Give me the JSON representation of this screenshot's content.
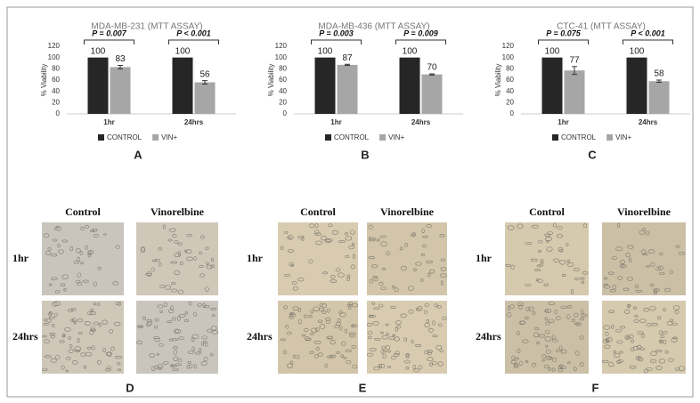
{
  "chart_data": [
    {
      "type": "bar",
      "title": "MDA-MB-231 (MTT ASSAY)",
      "ylabel": "% Viability",
      "panel_label": "A",
      "categories": [
        "1hr",
        "24hrs"
      ],
      "series": [
        {
          "name": "CONTROL",
          "color": "#262626",
          "values": [
            100,
            100
          ]
        },
        {
          "name": "VIN+",
          "color": "#a6a6a6",
          "values": [
            83,
            56
          ],
          "errors": [
            3,
            3
          ]
        }
      ],
      "p_values": [
        "P = 0.007",
        "P < 0.001"
      ],
      "ylim": [
        0,
        120
      ],
      "yticks": [
        0,
        20,
        40,
        60,
        80,
        100,
        120
      ],
      "grid": false
    },
    {
      "type": "bar",
      "title": "MDA-MB-436 (MTT ASSAY)",
      "ylabel": "% Viability",
      "panel_label": "B",
      "categories": [
        "1hr",
        "24hrs"
      ],
      "series": [
        {
          "name": "CONTROL",
          "color": "#262626",
          "values": [
            100,
            100
          ]
        },
        {
          "name": "VIN+",
          "color": "#a6a6a6",
          "values": [
            87,
            70
          ],
          "errors": [
            1,
            1
          ]
        }
      ],
      "p_values": [
        "P = 0.003",
        "P = 0.009"
      ],
      "ylim": [
        0,
        120
      ],
      "yticks": [
        0,
        20,
        40,
        60,
        80,
        100,
        120
      ],
      "grid": false
    },
    {
      "type": "bar",
      "title": "CTC-41 (MTT ASSAY)",
      "ylabel": "% Viability",
      "panel_label": "C",
      "categories": [
        "1hr",
        "24hrs"
      ],
      "series": [
        {
          "name": "CONTROL",
          "color": "#262626",
          "values": [
            100,
            100
          ]
        },
        {
          "name": "VIN+",
          "color": "#a6a6a6",
          "values": [
            77,
            58
          ],
          "errors": [
            7,
            2
          ]
        }
      ],
      "p_values": [
        "P = 0.075",
        "P < 0.001"
      ],
      "ylim": [
        0,
        120
      ],
      "yticks": [
        0,
        20,
        40,
        60,
        80,
        100,
        120
      ],
      "grid": false
    }
  ],
  "micrographs": [
    {
      "label": "D",
      "columns": [
        "Control",
        "Vinorelbine"
      ],
      "rows": [
        "1hr",
        "24hrs"
      ]
    },
    {
      "label": "E",
      "columns": [
        "Control",
        "Vinorelbine"
      ],
      "rows": [
        "1hr",
        "24hrs"
      ]
    },
    {
      "label": "F",
      "columns": [
        "Control",
        "Vinorelbine"
      ],
      "rows": [
        "1hr",
        "24hrs"
      ]
    }
  ]
}
